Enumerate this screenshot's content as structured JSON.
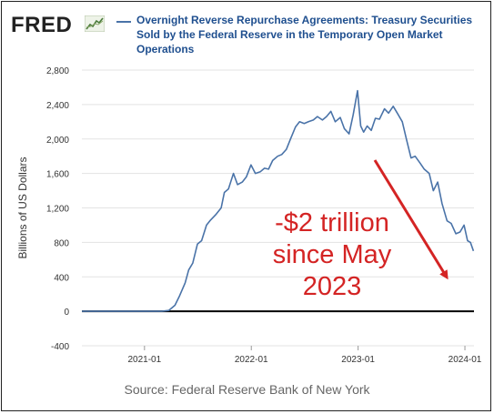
{
  "header": {
    "logo_text": "FRED",
    "logo_icon": "fred-chart-logo-icon",
    "title": "Overnight Reverse Repurchase Agreements: Treasury Securities Sold by the Federal Reserve in the Temporary Open Market Operations"
  },
  "source": "Source: Federal Reserve Bank of New York",
  "colors": {
    "series": "#4a73a8",
    "annotation": "#d42424",
    "title": "#1f4f8f"
  },
  "chart_data": {
    "type": "line",
    "title": "Overnight Reverse Repurchase Agreements: Treasury Securities Sold by the Federal Reserve in the Temporary Open Market Operations",
    "xlabel": "",
    "ylabel": "Billions of US Dollars",
    "ylim": [
      -400,
      2800
    ],
    "xlim": [
      "2020-06-01",
      "2024-02-01"
    ],
    "yticks": [
      -400,
      0,
      400,
      800,
      1200,
      1600,
      2000,
      2400,
      2800
    ],
    "ytick_labels": [
      "-400",
      "0",
      "400",
      "800",
      "1,200",
      "1,600",
      "2,000",
      "2,400",
      "2,800"
    ],
    "xticks": [
      "2021-01-01",
      "2022-01-01",
      "2023-01-01",
      "2024-01-01"
    ],
    "xtick_labels": [
      "2021-01",
      "2022-01",
      "2023-01",
      "2024-01"
    ],
    "grid": "horizontal",
    "reference_line": 0,
    "series": [
      {
        "x": [
          "2020-06-01",
          "2021-03-01",
          "2021-03-25",
          "2021-04-15",
          "2021-05-01",
          "2021-05-20",
          "2021-06-01",
          "2021-06-15",
          "2021-07-01",
          "2021-07-15",
          "2021-08-01",
          "2021-08-15",
          "2021-09-01",
          "2021-09-20",
          "2021-10-01",
          "2021-10-15",
          "2021-11-01",
          "2021-11-15",
          "2021-12-01",
          "2021-12-15",
          "2021-12-31",
          "2022-01-15",
          "2022-02-01",
          "2022-02-15",
          "2022-03-01",
          "2022-03-15",
          "2022-04-01",
          "2022-04-15",
          "2022-05-01",
          "2022-05-15",
          "2022-06-01",
          "2022-06-15",
          "2022-07-01",
          "2022-07-15",
          "2022-08-01",
          "2022-08-15",
          "2022-09-01",
          "2022-09-15",
          "2022-09-30",
          "2022-10-15",
          "2022-11-01",
          "2022-11-15",
          "2022-12-01",
          "2022-12-15",
          "2022-12-30",
          "2023-01-10",
          "2023-01-20",
          "2023-02-01",
          "2023-02-15",
          "2023-03-01",
          "2023-03-15",
          "2023-04-01",
          "2023-04-15",
          "2023-05-01",
          "2023-05-15",
          "2023-06-01",
          "2023-06-15",
          "2023-07-01",
          "2023-07-15",
          "2023-08-01",
          "2023-08-15",
          "2023-09-01",
          "2023-09-15",
          "2023-09-30",
          "2023-10-15",
          "2023-11-01",
          "2023-11-15",
          "2023-12-01",
          "2023-12-15",
          "2023-12-29",
          "2024-01-10",
          "2024-01-20",
          "2024-01-30"
        ],
        "values": [
          0,
          0,
          10,
          70,
          180,
          330,
          480,
          560,
          780,
          820,
          1000,
          1060,
          1120,
          1200,
          1380,
          1420,
          1600,
          1470,
          1500,
          1560,
          1700,
          1600,
          1620,
          1660,
          1650,
          1750,
          1800,
          1820,
          1880,
          2000,
          2140,
          2200,
          2180,
          2200,
          2220,
          2260,
          2220,
          2260,
          2320,
          2200,
          2250,
          2120,
          2060,
          2280,
          2560,
          2150,
          2080,
          2150,
          2100,
          2240,
          2230,
          2350,
          2300,
          2380,
          2300,
          2200,
          2000,
          1780,
          1800,
          1720,
          1650,
          1600,
          1400,
          1500,
          1250,
          1050,
          1020,
          900,
          920,
          1000,
          820,
          800,
          700
        ]
      }
    ],
    "annotations": [
      {
        "lines": [
          "-$2 trillion",
          "since May",
          "2023"
        ]
      }
    ]
  }
}
